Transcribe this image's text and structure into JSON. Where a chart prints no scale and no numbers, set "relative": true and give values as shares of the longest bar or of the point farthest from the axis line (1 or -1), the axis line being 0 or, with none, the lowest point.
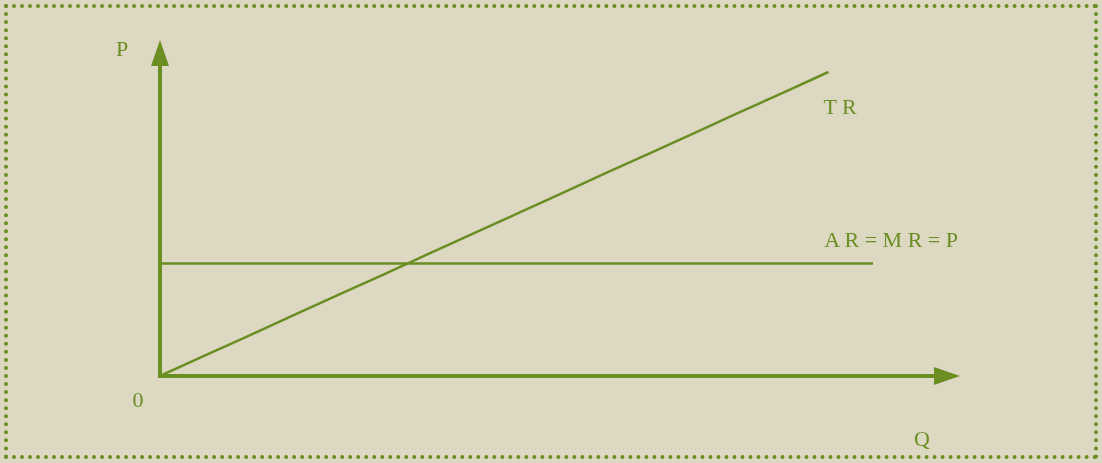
{
  "chart_data": {
    "type": "line",
    "relative": true,
    "xlabel": "Q",
    "ylabel": "P",
    "annotations": [
      "0"
    ],
    "categories": [
      null,
      null,
      null,
      null,
      null,
      null,
      null,
      null,
      null,
      null,
      null,
      null,
      null,
      null,
      null,
      null,
      null
    ],
    "series": [
      {
        "name": "T R",
        "color": "#6b8e23",
        "values": [
          0,
          0.067,
          0.133,
          0.2,
          0.267,
          0.333,
          0.4,
          0.467,
          0.533,
          0.6,
          0.667,
          0.733,
          0.8,
          0.867,
          0.933,
          1,
          null
        ]
      },
      {
        "name": "A R = M R = P",
        "color": "#6b8e23",
        "values": [
          0.37,
          0.37,
          0.37,
          0.37,
          0.37,
          0.37,
          0.37,
          0.37,
          0.37,
          0.37,
          0.37,
          0.37,
          0.37,
          0.37,
          0.37,
          0.37,
          0.37
        ]
      }
    ],
    "ref_lines": [
      {
        "axis": "y",
        "value": 0,
        "color": "#6b8e23"
      }
    ],
    "legend": false,
    "marker": "none",
    "line_style": "solid"
  }
}
